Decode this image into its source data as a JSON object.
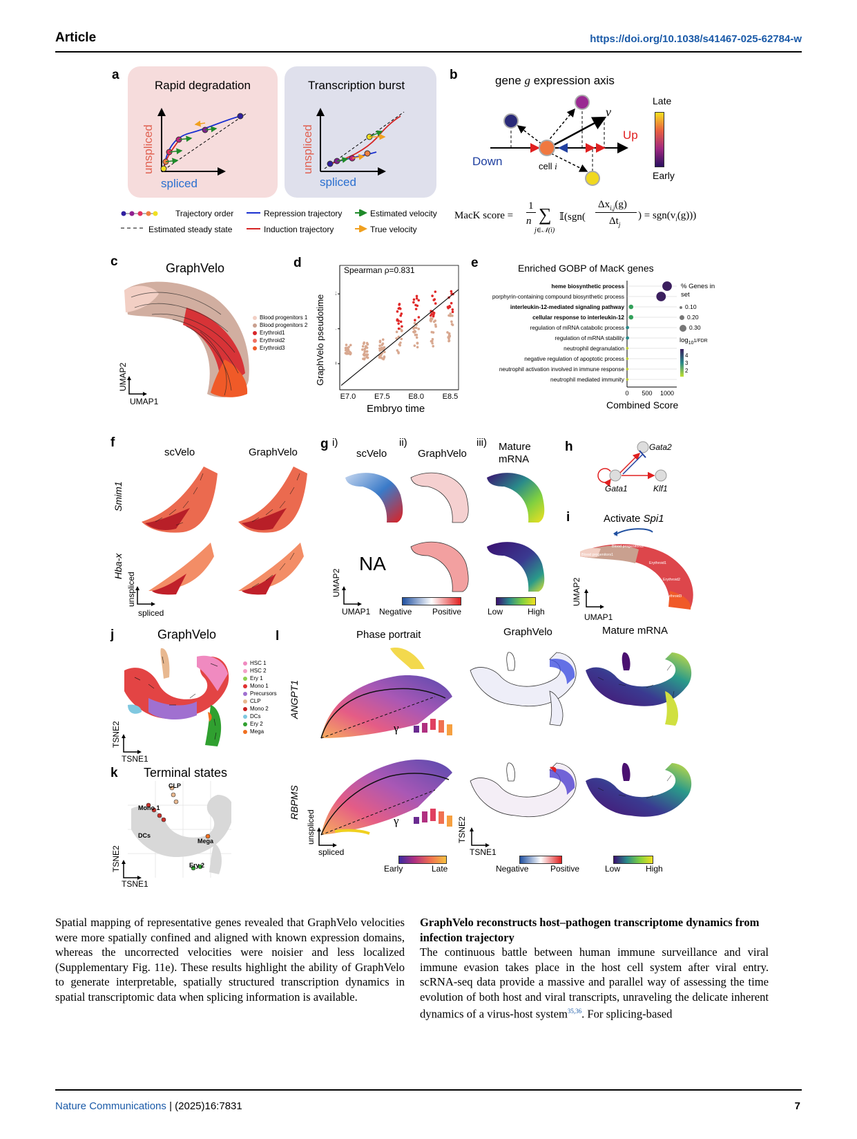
{
  "header": {
    "journal_section": "Article",
    "doi": "https://doi.org/10.1038/s41467-025-62784-w"
  },
  "panel_a": {
    "letter": "a",
    "left_title": "Rapid degradation",
    "right_title": "Transcription burst",
    "y_label": "unspliced",
    "x_label": "spliced",
    "legend": {
      "trajectory_order": "Trajectory order",
      "steady_state": "Estimated steady state",
      "repression": "Repression trajectory",
      "induction": "Induction trajectory",
      "estimated_velocity": "Estimated velocity",
      "true_velocity": "True velocity"
    },
    "colors": {
      "left_bg": "#f6dcdc",
      "right_bg": "#dfe0ec",
      "repression": "#1a2fd0",
      "induction": "#d62424",
      "estimated": "#1f8a2a",
      "true": "#f0a020"
    }
  },
  "panel_b": {
    "letter": "b",
    "title_prefix": "gene ",
    "title_g": "g",
    "title_suffix": " expression axis",
    "v_label": "v",
    "up": "Up",
    "down": "Down",
    "cell_label": "cell ",
    "cell_i": "i",
    "late": "Late",
    "early": "Early",
    "formula": {
      "lhs": "MacK score =",
      "frac_num": "1",
      "frac_den": "n",
      "sum_sub": "j∈𝒩(i)",
      "indicator": "𝕀(sgn(",
      "delta_num": "Δx",
      "delta_num_sub": "i,j",
      "delta_num_tail": "(g)",
      "delta_den": "Δt",
      "delta_den_sub": "j",
      "rhs": ") = sgn(v",
      "rhs_sub": "i",
      "rhs_tail": "(g)))"
    },
    "colors": {
      "up": "#e02020",
      "down": "#2040a0"
    }
  },
  "panel_c": {
    "letter": "c",
    "title": "GraphVelo",
    "x_axis": "UMAP1",
    "y_axis": "UMAP2",
    "legend": [
      {
        "label": "Blood progenitors 1",
        "color": "#f2cfc4"
      },
      {
        "label": "Blood progenitors 2",
        "color": "#c9a08f"
      },
      {
        "label": "Erythroid1",
        "color": "#d7262b"
      },
      {
        "label": "Erythroid2",
        "color": "#f07060"
      },
      {
        "label": "Erythroid3",
        "color": "#f05a28"
      }
    ]
  },
  "panel_d": {
    "letter": "d",
    "annotation": "Spearman ρ=0.831",
    "xlabel": "Embryo time",
    "ylabel": "GraphVelo pseudotime"
  },
  "panel_e": {
    "letter": "e",
    "title": "Enriched GOBP of MacK genes",
    "xlabel": "Combined Score",
    "size_legend_title": "% Genes in set",
    "size_legend_values": [
      "0.10",
      "0.20",
      "0.30"
    ],
    "color_legend_title": "log",
    "color_legend_sub": "10",
    "color_legend_tail": "1/FDR",
    "color_legend_values": [
      "4",
      "3",
      "2"
    ]
  },
  "panel_f": {
    "letter": "f",
    "col1": "scVelo",
    "col2": "GraphVelo",
    "row1": "Smim1",
    "row2": "Hba-x",
    "y_axis": "unspliced",
    "x_axis": "spliced"
  },
  "panel_g": {
    "letter": "g",
    "col_i": "i)",
    "col_ii": "ii)",
    "col_iii": "iii)",
    "col1": "scVelo",
    "col2": "GraphVelo",
    "col3_line1": "Mature",
    "col3_line2": "mRNA",
    "na": "NA",
    "x_axis": "UMAP1",
    "y_axis": "UMAP2",
    "neg": "Negative",
    "pos": "Positive",
    "low": "Low",
    "high": "High"
  },
  "panel_h": {
    "letter": "h",
    "gata2": "Gata2",
    "gata1": "Gata1",
    "klf1": "Klf1"
  },
  "panel_i": {
    "letter": "i",
    "title_prefix": "Activate ",
    "title_gene": "Spi1",
    "x_axis": "UMAP1",
    "y_axis": "UMAP2"
  },
  "panel_j": {
    "letter": "j",
    "title": "GraphVelo",
    "x_axis": "TSNE1",
    "y_axis": "TSNE2",
    "legend": [
      {
        "label": "HSC 1",
        "color": "#f08ac0"
      },
      {
        "label": "HSC 2",
        "color": "#f4a0c8"
      },
      {
        "label": "Ery 1",
        "color": "#8ccf50"
      },
      {
        "label": "Mono 1",
        "color": "#e03030"
      },
      {
        "label": "Precursors",
        "color": "#a070d0"
      },
      {
        "label": "CLP",
        "color": "#e8b890"
      },
      {
        "label": "Mono 2",
        "color": "#c82020"
      },
      {
        "label": "DCs",
        "color": "#80c8e0"
      },
      {
        "label": "Ery 2",
        "color": "#30a030"
      },
      {
        "label": "Mega",
        "color": "#f07020"
      }
    ]
  },
  "panel_k": {
    "letter": "k",
    "title": "Terminal states",
    "labels": [
      "CLP",
      "Mono 1",
      "DCs",
      "Mega",
      "Ery 2"
    ],
    "x_axis": "TSNE1",
    "y_axis": "TSNE2"
  },
  "panel_l": {
    "letter": "l",
    "col1": "Phase portrait",
    "col2": "GraphVelo",
    "col3": "Mature mRNA",
    "row1": "ANGPT1",
    "row2": "RBPMS",
    "gamma": "γ",
    "y_axis": "unspliced",
    "x_axis": "spliced",
    "tsne_x": "TSNE1",
    "tsne_y": "TSNE2",
    "early": "Early",
    "late": "Late",
    "neg": "Negative",
    "pos": "Positive",
    "low": "Low",
    "high": "High"
  },
  "chart_data": [
    {
      "type": "scatter",
      "panel": "d",
      "title": "",
      "xlabel": "Embryo time",
      "ylabel": "GraphVelo pseudotime",
      "x_ticks": [
        "E7.0",
        "E7.5",
        "E8.0",
        "E8.5"
      ],
      "y_ticks": [
        0,
        4,
        8
      ],
      "annotation": "Spearman ρ=0.831",
      "groups": [
        {
          "x": "E7.0",
          "y_range": [
            1,
            2.2
          ]
        },
        {
          "x": "E7.25",
          "y_range": [
            0.5,
            2.5
          ]
        },
        {
          "x": "E7.5",
          "y_range": [
            0.5,
            3
          ]
        },
        {
          "x": "E7.75",
          "y_range": [
            1,
            7
          ]
        },
        {
          "x": "E8.0",
          "y_range": [
            1.5,
            8
          ]
        },
        {
          "x": "E8.25",
          "y_range": [
            2,
            8.5
          ]
        },
        {
          "x": "E8.5",
          "y_range": [
            2.5,
            9
          ]
        }
      ],
      "fit_line": {
        "x": [
          "E7.0",
          "E8.5"
        ],
        "y": [
          -2.5,
          7.5
        ]
      }
    },
    {
      "type": "scatter",
      "panel": "e",
      "title": "Enriched GOBP of MacK genes",
      "xlabel": "Combined Score",
      "x_ticks": [
        0,
        500,
        1000
      ],
      "terms": [
        {
          "label": "heme biosynthetic process",
          "bold": true,
          "score": 1000,
          "pct": 0.3,
          "color": "#3b1f5e"
        },
        {
          "label": "porphyrin-containing compound biosynthetic process",
          "bold": false,
          "score": 850,
          "pct": 0.3,
          "color": "#3b1f5e"
        },
        {
          "label": "interleukin-12-mediated signaling pathway",
          "bold": true,
          "score": 100,
          "pct": 0.1,
          "color": "#33a05a"
        },
        {
          "label": "cellular response to interleukin-12",
          "bold": true,
          "score": 100,
          "pct": 0.1,
          "color": "#33a05a"
        },
        {
          "label": "regulation of mRNA catabolic process",
          "bold": false,
          "score": 10,
          "pct": 0.05,
          "color": "#2a8a8a"
        },
        {
          "label": "regulation of mRNA stability",
          "bold": false,
          "score": 10,
          "pct": 0.05,
          "color": "#2a8a8a"
        },
        {
          "label": "neutrophil degranulation",
          "bold": false,
          "score": 5,
          "pct": 0.02,
          "color": "#c0d030"
        },
        {
          "label": "negative regulation of apoptotic process",
          "bold": false,
          "score": 5,
          "pct": 0.02,
          "color": "#c0d030"
        },
        {
          "label": "neutrophil activation involved in immune response",
          "bold": false,
          "score": 5,
          "pct": 0.02,
          "color": "#c0d030"
        },
        {
          "label": "neutrophil mediated immunity",
          "bold": false,
          "score": 5,
          "pct": 0.02,
          "color": "#c0d030"
        }
      ]
    }
  ],
  "body": {
    "left_paragraph": "Spatial mapping of representative genes revealed that GraphVelo velocities were more spatially confined and aligned with known expression domains, whereas the uncorrected velocities were noisier and less localized (Supplementary Fig. 11e). These results highlight the ability of GraphVelo to generate interpretable, spatially structured transcription dynamics in spatial transcriptomic data when splicing information is available.",
    "right_heading": "GraphVelo reconstructs host–pathogen transcriptome dynamics from infection trajectory",
    "right_paragraph_pre": "The continuous battle between human immune surveillance and viral immune evasion takes place in the host cell system after viral entry. scRNA-seq data provide a massive and parallel way of assessing the time evolution of both host and viral transcripts, unraveling the delicate inherent dynamics of a virus-host system",
    "right_paragraph_ref": "35,36",
    "right_paragraph_post": ". For splicing-based"
  },
  "footer": {
    "journal": "Nature Communications",
    "citation": " | (2025)16:7831",
    "page": "7"
  }
}
